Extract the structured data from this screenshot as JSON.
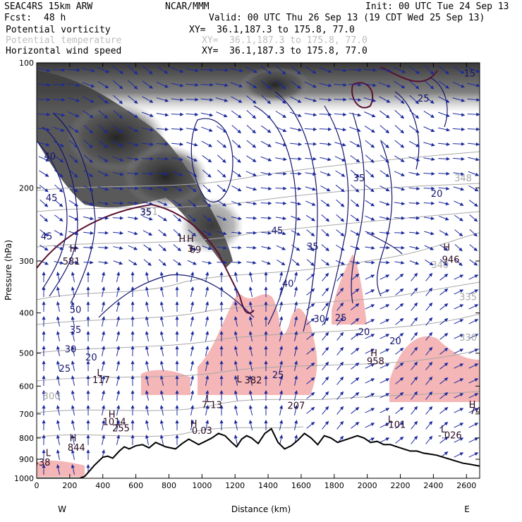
{
  "header": {
    "model": "SEAC4RS 15km ARW",
    "org": "NCAR/MMM",
    "init": "Init: 00 UTC Tue 24 Sep 13",
    "fcst_label": "Fcst:",
    "fcst_value": "48 h",
    "valid": "Valid: 00 UTC Thu 26 Sep 13 (19 CDT Wed 25 Sep 13)",
    "fields": [
      {
        "name": "Potential vorticity",
        "xy": "XY=  36.1,187.3 to 175.8, 77.0",
        "faint": false
      },
      {
        "name": "Potential temperature",
        "xy": "XY=  36.1,187.3 to 175.8, 77.0",
        "faint": true
      },
      {
        "name": "Horizontal wind speed",
        "xy": "XY=  36.1,187.3 to 175.8, 77.0",
        "faint": false
      }
    ]
  },
  "colors": {
    "pv_shading": "#3f3f3f",
    "pv_contour": "#5a1030",
    "theta": "#a8a8a8",
    "wind_speed": "#14146e",
    "vectors": "#1c2a9c",
    "precip_fill": "#f4b6b6",
    "terrain": "#000000"
  },
  "chart_data": {
    "type": "cross-section",
    "xlabel": "Distance (km)",
    "ylabel": "Pressure (hPa)",
    "xlim": [
      0,
      2680
    ],
    "ylim": [
      1000,
      100
    ],
    "y_scale": "log",
    "x_ticks": [
      0,
      200,
      400,
      600,
      800,
      1000,
      1200,
      1400,
      1600,
      1800,
      2000,
      2200,
      2400,
      2600
    ],
    "y_ticks": [
      100,
      200,
      300,
      400,
      500,
      600,
      700,
      800,
      900,
      1000
    ],
    "direction_left": "W",
    "direction_right": "E",
    "terrain_surface": {
      "x": [
        0,
        100,
        200,
        260,
        290,
        320,
        350,
        400,
        430,
        460,
        500,
        530,
        560,
        600,
        640,
        680,
        720,
        780,
        840,
        880,
        920,
        980,
        1020,
        1060,
        1100,
        1140,
        1180,
        1210,
        1240,
        1270,
        1300,
        1340,
        1380,
        1420,
        1460,
        1500,
        1540,
        1580,
        1620,
        1660,
        1700,
        1740,
        1780,
        1820,
        1860,
        1900,
        1940,
        1980,
        2020,
        2060,
        2100,
        2140,
        2180,
        2220,
        2260,
        2300,
        2340,
        2380,
        2420,
        2460,
        2500,
        2540,
        2580,
        2620,
        2680
      ],
      "p": [
        1020,
        1020,
        1018,
        1012,
        990,
        960,
        930,
        890,
        885,
        895,
        860,
        840,
        850,
        835,
        830,
        845,
        820,
        840,
        850,
        825,
        805,
        830,
        815,
        800,
        780,
        790,
        820,
        840,
        805,
        790,
        800,
        825,
        780,
        760,
        820,
        850,
        835,
        810,
        780,
        800,
        830,
        790,
        800,
        820,
        810,
        800,
        790,
        800,
        820,
        815,
        830,
        830,
        840,
        850,
        860,
        860,
        870,
        875,
        880,
        890,
        900,
        910,
        920,
        925,
        935
      ]
    },
    "labels": [
      {
        "text": "L",
        "x": 70,
        "p": 885,
        "role": "low"
      },
      {
        "text": "438",
        "x": 30,
        "p": 932,
        "role": "low-value"
      },
      {
        "text": "H",
        "x": 220,
        "p": 815,
        "role": "high"
      },
      {
        "text": "844",
        "x": 240,
        "p": 858,
        "role": "high-value"
      },
      {
        "text": "H",
        "x": 455,
        "p": 715,
        "role": "high"
      },
      {
        "text": "1014",
        "x": 470,
        "p": 744,
        "role": "high-value"
      },
      {
        "text": "255",
        "x": 510,
        "p": 771,
        "role": "high-value"
      },
      {
        "text": "H",
        "x": 950,
        "p": 752,
        "role": "high"
      },
      {
        "text": "0.03",
        "x": 1000,
        "p": 782,
        "role": "high-value"
      },
      {
        "text": "L",
        "x": 1040,
        "p": 655,
        "role": "low"
      },
      {
        "text": "7.13",
        "x": 1060,
        "p": 678,
        "role": "low-value"
      },
      {
        "text": "L",
        "x": 380,
        "p": 567,
        "role": "low"
      },
      {
        "text": "117",
        "x": 390,
        "p": 590,
        "role": "low-value"
      },
      {
        "text": "L",
        "x": 1225,
        "p": 588,
        "role": "low"
      },
      {
        "text": "382",
        "x": 1310,
        "p": 591,
        "role": "low-value"
      },
      {
        "text": "207",
        "x": 1570,
        "p": 680,
        "role": "label"
      },
      {
        "text": "H",
        "x": 2040,
        "p": 508,
        "role": "high"
      },
      {
        "text": "958",
        "x": 2050,
        "p": 532,
        "role": "high-value"
      },
      {
        "text": "L",
        "x": 2140,
        "p": 735,
        "role": "low"
      },
      {
        "text": "-101",
        "x": 2170,
        "p": 756,
        "role": "low-value"
      },
      {
        "text": "L",
        "x": 2460,
        "p": 775,
        "role": "low"
      },
      {
        "text": "-.026",
        "x": 2500,
        "p": 802,
        "role": "low-value"
      },
      {
        "text": "H",
        "x": 2635,
        "p": 676,
        "role": "high"
      },
      {
        "text": "74",
        "x": 2655,
        "p": 700,
        "role": "high-value"
      },
      {
        "text": "H",
        "x": 2480,
        "p": 283,
        "role": "high"
      },
      {
        "text": "946",
        "x": 2505,
        "p": 303,
        "role": "high-value"
      },
      {
        "text": "H",
        "x": 220,
        "p": 285,
        "role": "high"
      },
      {
        "text": "581",
        "x": 210,
        "p": 306,
        "role": "high-value"
      },
      {
        "text": "H",
        "x": 880,
        "p": 270,
        "role": "high"
      },
      {
        "text": "H",
        "x": 930,
        "p": 270,
        "role": "high"
      },
      {
        "text": "3",
        "x": 930,
        "p": 285,
        "role": "label"
      },
      {
        "text": "69",
        "x": 960,
        "p": 287,
        "role": "label"
      }
    ],
    "speed_contour_labels": [
      {
        "text": "40",
        "x": 80,
        "p": 171,
        "role": "speed"
      },
      {
        "text": "45",
        "x": 90,
        "p": 215,
        "role": "speed"
      },
      {
        "text": "45",
        "x": 60,
        "p": 266,
        "role": "speed"
      },
      {
        "text": "50",
        "x": 235,
        "p": 400,
        "role": "speed"
      },
      {
        "text": "35",
        "x": 235,
        "p": 447,
        "role": "speed"
      },
      {
        "text": "30",
        "x": 205,
        "p": 498,
        "role": "speed"
      },
      {
        "text": "25",
        "x": 170,
        "p": 554,
        "role": "speed"
      },
      {
        "text": "20",
        "x": 330,
        "p": 521,
        "role": "speed"
      },
      {
        "text": "35",
        "x": 660,
        "p": 233,
        "role": "speed"
      },
      {
        "text": "45",
        "x": 1455,
        "p": 258,
        "role": "speed"
      },
      {
        "text": "40",
        "x": 1520,
        "p": 346,
        "role": "speed"
      },
      {
        "text": "35",
        "x": 1670,
        "p": 282,
        "role": "speed"
      },
      {
        "text": "30",
        "x": 1710,
        "p": 421,
        "role": "speed"
      },
      {
        "text": "25",
        "x": 1840,
        "p": 418,
        "role": "speed"
      },
      {
        "text": "20",
        "x": 1980,
        "p": 452,
        "role": "speed"
      },
      {
        "text": "20",
        "x": 2170,
        "p": 476,
        "role": "speed"
      },
      {
        "text": "25",
        "x": 1460,
        "p": 574,
        "role": "speed"
      },
      {
        "text": "25",
        "x": 2340,
        "p": 124,
        "role": "speed"
      },
      {
        "text": "20",
        "x": 2420,
        "p": 210,
        "role": "speed"
      },
      {
        "text": "15",
        "x": 2620,
        "p": 108,
        "role": "speed"
      },
      {
        "text": "35",
        "x": 1950,
        "p": 193,
        "role": "speed"
      }
    ],
    "theta_contour_labels": [
      {
        "text": "300",
        "x": 90,
        "p": 646,
        "role": "theta"
      },
      {
        "text": "330",
        "x": 2610,
        "p": 467,
        "role": "theta"
      },
      {
        "text": "335",
        "x": 2610,
        "p": 373,
        "role": "theta"
      },
      {
        "text": "340",
        "x": 2440,
        "p": 312,
        "role": "theta"
      },
      {
        "text": "348",
        "x": 2580,
        "p": 193,
        "role": "theta"
      },
      {
        "text": "351",
        "x": 680,
        "p": 232,
        "role": "theta"
      }
    ]
  }
}
